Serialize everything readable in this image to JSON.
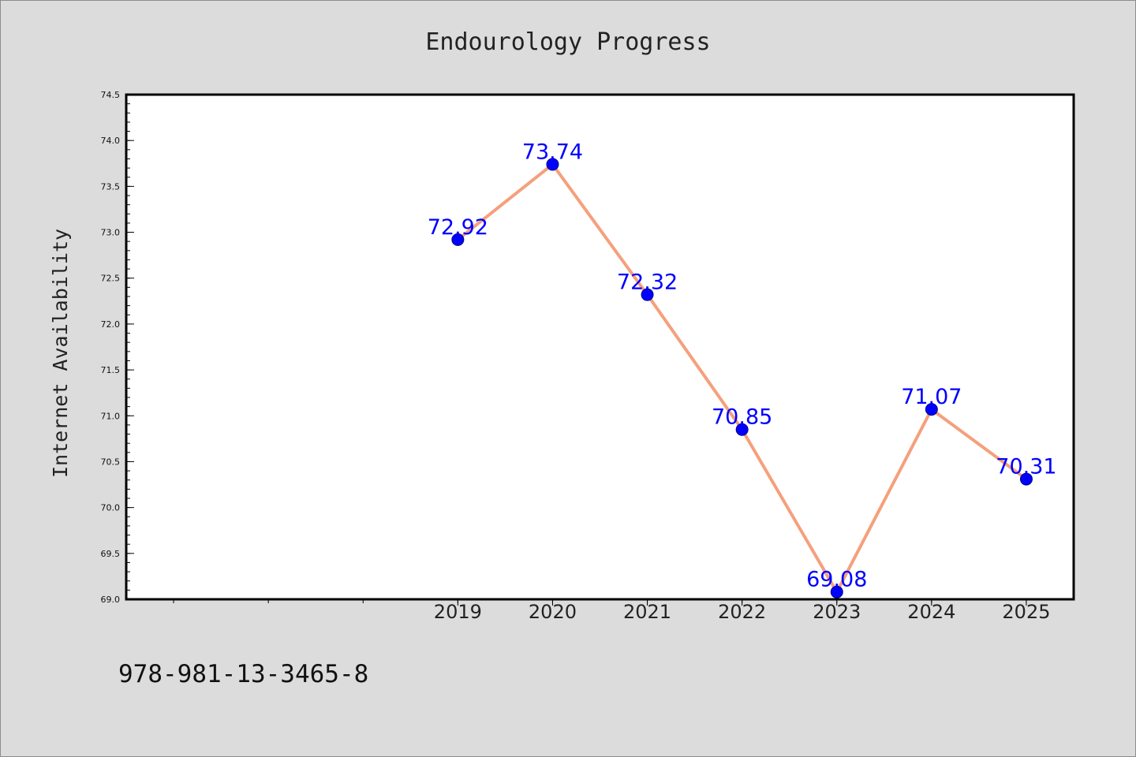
{
  "chart_data": {
    "type": "line",
    "title": "Endourology Progress",
    "ylabel": "Internet Availability",
    "xlabel": "",
    "categories": [
      "2019",
      "2020",
      "2021",
      "2022",
      "2023",
      "2024",
      "2025"
    ],
    "series": [
      {
        "values": [
          72.92,
          73.74,
          72.32,
          70.85,
          69.08,
          71.07,
          70.31
        ],
        "labels": [
          "72.92",
          "73.74",
          "72.32",
          "70.85",
          "69.08",
          "71.07",
          "70.31"
        ]
      }
    ],
    "ylim": [
      69.0,
      74.5
    ],
    "yticks": [
      "69.0",
      "69.5",
      "70.0",
      "70.5",
      "71.0",
      "71.5",
      "72.0",
      "72.5",
      "73.0",
      "73.5",
      "74.0",
      "74.5"
    ],
    "xlim": [
      2015.5,
      2025.5
    ],
    "grid": false,
    "legend": "none",
    "line_color": "#f5a07c",
    "marker_color": "#0000ff",
    "label_color": "#0000ff"
  },
  "footer": {
    "isbn": "978-981-13-3465-8"
  }
}
